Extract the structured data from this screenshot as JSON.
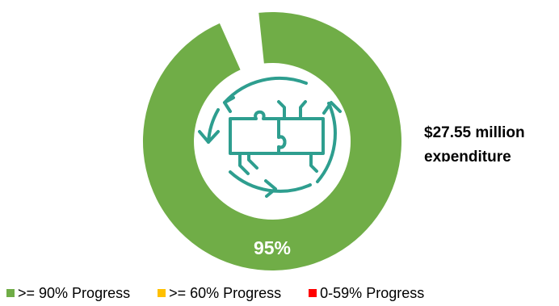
{
  "chart_data": {
    "type": "pie",
    "variant": "donut",
    "values": [
      95
    ],
    "max": 100,
    "value_label": "95%",
    "status_color": "#70AD47",
    "track_color": "#ffffff",
    "annotation": [
      "$27.55 million",
      "expenditure"
    ],
    "legend": [
      {
        "label": ">= 90% Progress",
        "color": "#70AD47"
      },
      {
        "label": ">= 60% Progress",
        "color": "#FFC000"
      },
      {
        "label": "0-59% Progress",
        "color": "#FF0000"
      }
    ],
    "center_icon": "puzzle-cycle-icon",
    "icon_color": "#2E9E8F"
  }
}
